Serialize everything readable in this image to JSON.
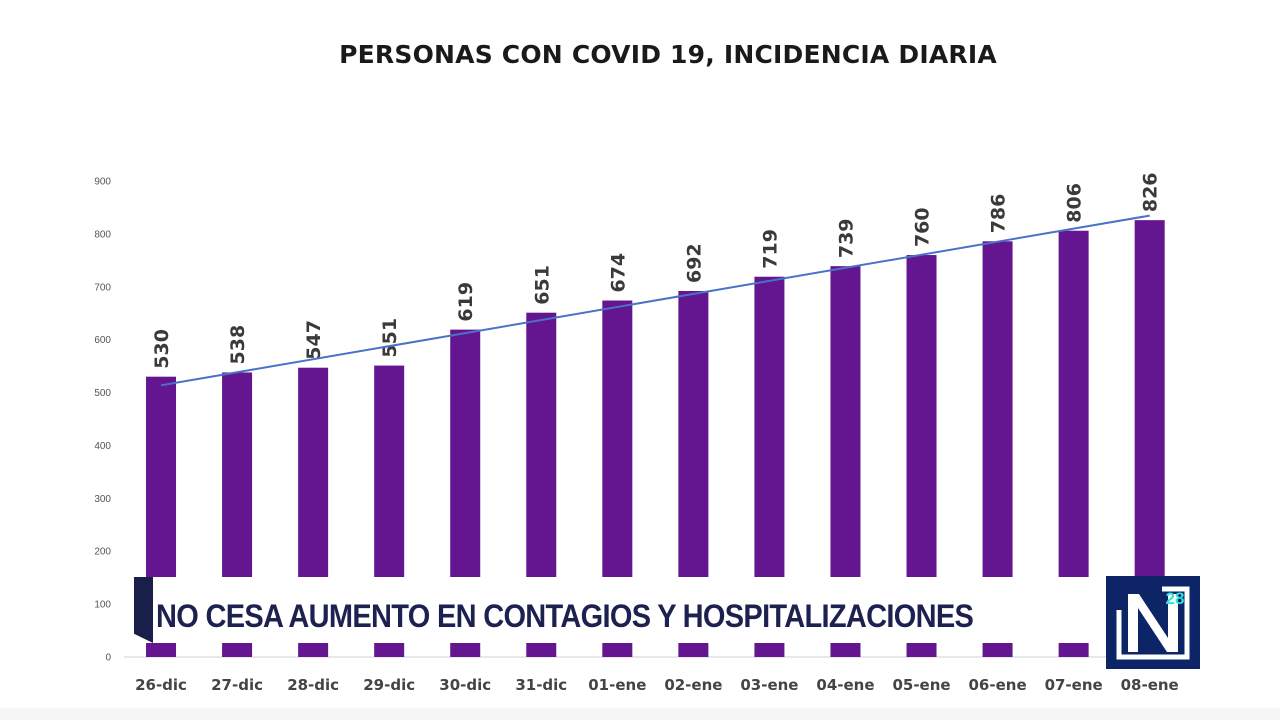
{
  "chart_data": {
    "type": "bar",
    "title": "PERSONAS CON COVID 19, INCIDENCIA DIARIA",
    "categories": [
      "26-dic",
      "27-dic",
      "28-dic",
      "29-dic",
      "30-dic",
      "31-dic",
      "01-ene",
      "02-ene",
      "03-ene",
      "04-ene",
      "05-ene",
      "06-ene",
      "07-ene",
      "08-ene"
    ],
    "values": [
      530,
      538,
      547,
      551,
      619,
      651,
      674,
      692,
      719,
      739,
      760,
      786,
      806,
      826
    ],
    "ylim": [
      0,
      900
    ],
    "yticks": [
      0,
      100,
      200,
      300,
      400,
      500,
      600,
      700,
      800,
      900
    ],
    "bar_color": "#63168f",
    "trendline": {
      "type": "linear",
      "color": "#4a72c8"
    },
    "data_labels": true,
    "grid": false
  },
  "banner": {
    "text": "NO CESA AUMENTO EN CONTAGIOS Y HOSPITALIZACIONES",
    "accent_color": "#1a1f4a",
    "text_color": "#1c2150"
  },
  "logo": {
    "letter": "N",
    "badge": "28",
    "background": "#0d2566",
    "badge_color": "#2ee3d8"
  }
}
